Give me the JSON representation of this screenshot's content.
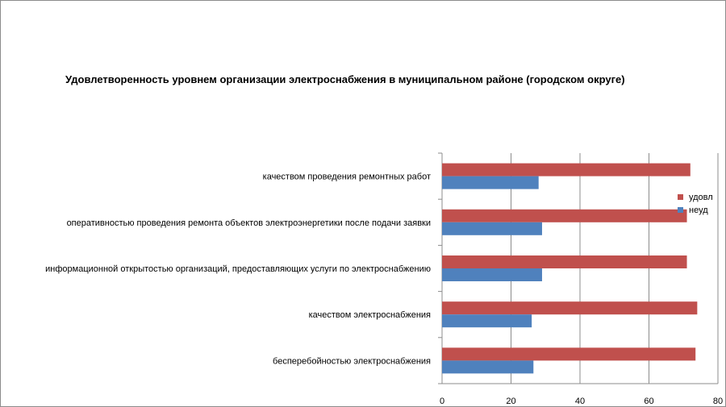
{
  "chart_data": {
    "type": "bar",
    "orientation": "horizontal",
    "title": "Удовлетворенность уровнем организации электроснабжения в муниципальном районе (городском округе)",
    "categories": [
      "качеством проведения ремонтных работ",
      "оперативностью проведения ремонта объектов электроэнергетики после подачи заявки",
      "информационной открытостью организаций, предоставляющих услуги по электроснабжению",
      "качеством электроснабжения",
      "бесперебойностью электроснабжения"
    ],
    "series": [
      {
        "name": "удовл",
        "color": "#c0504d",
        "values": [
          72,
          71,
          71,
          74,
          73.5
        ]
      },
      {
        "name": "неуд",
        "color": "#4f81bd",
        "values": [
          28,
          29,
          29,
          26,
          26.5
        ]
      }
    ],
    "xlim": [
      0,
      80
    ],
    "xticks": [
      "0",
      "20",
      "40",
      "60",
      "80"
    ],
    "grid": true,
    "legend_position": "right"
  }
}
